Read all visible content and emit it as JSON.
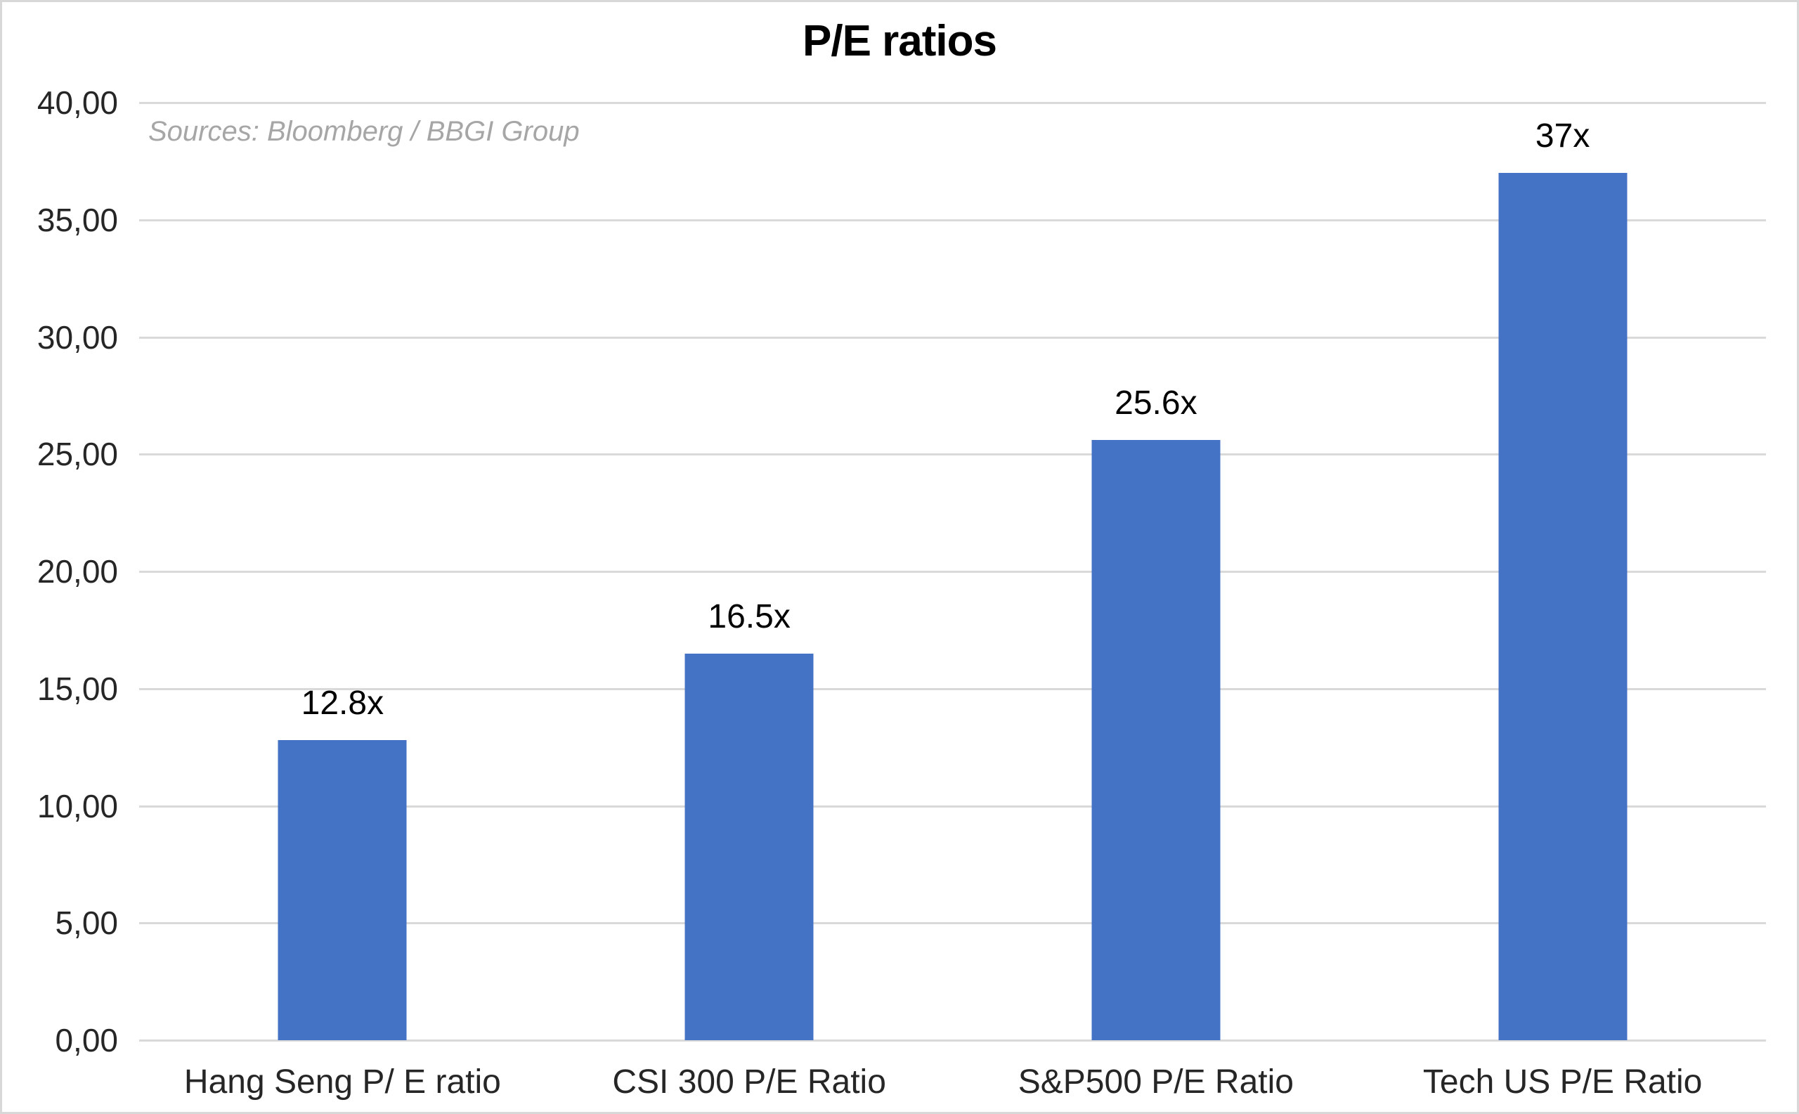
{
  "chart_data": {
    "type": "bar",
    "title": "P/E ratios",
    "source_note": "Sources: Bloomberg / BBGI Group",
    "categories": [
      "Hang Seng P/ E ratio",
      "CSI 300 P/E Ratio",
      "S&P500 P/E Ratio",
      "Tech US P/E Ratio"
    ],
    "values": [
      12.8,
      16.5,
      25.6,
      37
    ],
    "value_labels": [
      "12.8x",
      "16.5x",
      "25.6x",
      "37x"
    ],
    "xlabel": "",
    "ylabel": "",
    "ylim": [
      0,
      40
    ],
    "ytick_step": 5,
    "ytick_labels": [
      "0,00",
      "5,00",
      "10,00",
      "15,00",
      "20,00",
      "25,00",
      "30,00",
      "35,00",
      "40,00"
    ],
    "grid": "horizontal",
    "legend": "none",
    "colors": {
      "bar": "#4472C4",
      "gridline": "#D9D9D9",
      "axis_text": "#262626",
      "source_text": "#A6A6A6",
      "frame_border": "#D8D8D8"
    }
  }
}
